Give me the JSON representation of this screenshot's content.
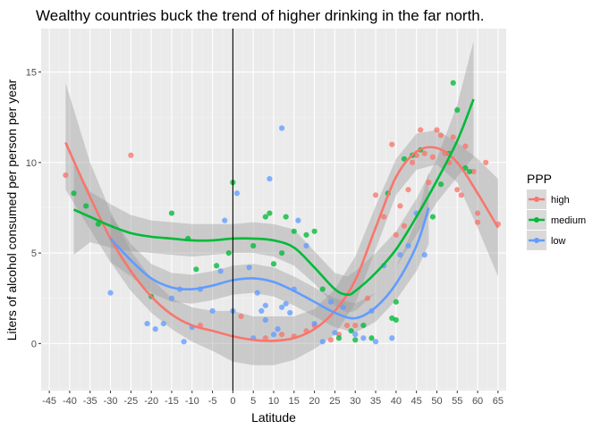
{
  "chart_data": {
    "type": "scatter",
    "title": "Wealthy countries buck the trend of higher drinking in the far north.",
    "xlabel": "Latitude",
    "ylabel": "Liters of alcohol consumed per person per year",
    "xlim": [
      -47,
      67
    ],
    "ylim": [
      -2.6,
      17.4
    ],
    "x_ticks": [
      -45,
      -40,
      -35,
      -30,
      -25,
      -20,
      -15,
      -10,
      -5,
      0,
      5,
      10,
      15,
      20,
      25,
      30,
      35,
      40,
      45,
      50,
      55,
      60,
      65
    ],
    "y_ticks": [
      0,
      5,
      10,
      15
    ],
    "vline_x": 0,
    "grid": true,
    "legend": {
      "title": "PPP",
      "position": "right"
    },
    "series": [
      {
        "name": "high",
        "color": "#F8766D",
        "points": [
          [
            -41,
            9.3
          ],
          [
            -25,
            10.4
          ],
          [
            -8,
            1.0
          ],
          [
            2,
            1.5
          ],
          [
            8,
            0.3
          ],
          [
            12,
            0.5
          ],
          [
            15,
            0.4
          ],
          [
            18,
            0.7
          ],
          [
            20,
            1.0
          ],
          [
            24,
            0.2
          ],
          [
            26,
            0.5
          ],
          [
            28,
            1.0
          ],
          [
            30,
            1.0
          ],
          [
            33,
            2.5
          ],
          [
            35,
            8.2
          ],
          [
            37,
            7.0
          ],
          [
            39,
            11.0
          ],
          [
            40,
            6.0
          ],
          [
            41,
            7.6
          ],
          [
            42,
            6.5
          ],
          [
            43,
            8.5
          ],
          [
            44,
            10.0
          ],
          [
            45,
            10.4
          ],
          [
            46,
            11.8
          ],
          [
            47,
            10.5
          ],
          [
            48,
            8.9
          ],
          [
            49,
            10.3
          ],
          [
            50,
            11.8
          ],
          [
            51,
            11.5
          ],
          [
            52,
            10.5
          ],
          [
            53,
            10.0
          ],
          [
            54,
            11.4
          ],
          [
            55,
            8.5
          ],
          [
            56,
            8.2
          ],
          [
            57,
            10.9
          ],
          [
            59,
            9.5
          ],
          [
            60,
            7.2
          ],
          [
            60,
            6.7
          ],
          [
            62,
            10.0
          ],
          [
            65,
            6.6
          ]
        ],
        "trend": [
          [
            -41,
            11.1
          ],
          [
            -35,
            8.1
          ],
          [
            -30,
            5.8
          ],
          [
            -25,
            4.0
          ],
          [
            -20,
            2.6
          ],
          [
            -15,
            1.6
          ],
          [
            -10,
            1.0
          ],
          [
            -5,
            0.7
          ],
          [
            0,
            0.4
          ],
          [
            5,
            0.2
          ],
          [
            10,
            0.15
          ],
          [
            15,
            0.3
          ],
          [
            20,
            0.8
          ],
          [
            25,
            1.8
          ],
          [
            30,
            3.5
          ],
          [
            35,
            6.4
          ],
          [
            40,
            9.2
          ],
          [
            45,
            10.6
          ],
          [
            50,
            10.8
          ],
          [
            55,
            10.0
          ],
          [
            60,
            8.3
          ],
          [
            65,
            6.4
          ]
        ],
        "band": [
          [
            -41,
            8.5,
            14.4
          ],
          [
            -35,
            6.3,
            10.0
          ],
          [
            -30,
            4.5,
            7.3
          ],
          [
            -25,
            2.9,
            5.1
          ],
          [
            -20,
            1.7,
            3.6
          ],
          [
            -15,
            0.8,
            2.5
          ],
          [
            -10,
            0.1,
            2.0
          ],
          [
            -5,
            -0.4,
            1.8
          ],
          [
            0,
            -1.0,
            1.8
          ],
          [
            5,
            -1.2,
            1.5
          ],
          [
            10,
            -1.2,
            1.5
          ],
          [
            15,
            -0.9,
            1.5
          ],
          [
            20,
            -0.3,
            1.9
          ],
          [
            25,
            0.5,
            3.0
          ],
          [
            30,
            2.2,
            4.8
          ],
          [
            35,
            5.2,
            7.6
          ],
          [
            40,
            8.2,
            10.2
          ],
          [
            45,
            9.6,
            11.6
          ],
          [
            50,
            9.9,
            11.8
          ],
          [
            55,
            8.9,
            11.1
          ],
          [
            60,
            6.4,
            10.2
          ],
          [
            65,
            3.7,
            9.1
          ]
        ]
      },
      {
        "name": "medium",
        "color": "#00BA38",
        "points": [
          [
            -39,
            8.3
          ],
          [
            -36,
            7.6
          ],
          [
            -33,
            6.6
          ],
          [
            -20,
            2.6
          ],
          [
            -15,
            7.2
          ],
          [
            -11,
            5.8
          ],
          [
            -9,
            4.1
          ],
          [
            -4,
            4.3
          ],
          [
            -1,
            5.0
          ],
          [
            0,
            8.9
          ],
          [
            5,
            5.4
          ],
          [
            8,
            7.0
          ],
          [
            9,
            7.2
          ],
          [
            10,
            4.4
          ],
          [
            12,
            5.0
          ],
          [
            13,
            7.0
          ],
          [
            15,
            6.2
          ],
          [
            18,
            6.0
          ],
          [
            20,
            6.2
          ],
          [
            22,
            3.0
          ],
          [
            26,
            0.3
          ],
          [
            29,
            0.7
          ],
          [
            30,
            0.2
          ],
          [
            32,
            1.0
          ],
          [
            34,
            0.3
          ],
          [
            38,
            8.3
          ],
          [
            39,
            1.4
          ],
          [
            40,
            1.3
          ],
          [
            40,
            2.3
          ],
          [
            42,
            10.2
          ],
          [
            44,
            10.4
          ],
          [
            46,
            10.7
          ],
          [
            49,
            7.0
          ],
          [
            51,
            8.8
          ],
          [
            53,
            10.5
          ],
          [
            54,
            14.4
          ],
          [
            55,
            12.9
          ],
          [
            57,
            9.7
          ],
          [
            58,
            9.5
          ]
        ],
        "trend": [
          [
            -39,
            7.4
          ],
          [
            -35,
            7.0
          ],
          [
            -30,
            6.5
          ],
          [
            -25,
            6.1
          ],
          [
            -20,
            5.9
          ],
          [
            -15,
            5.8
          ],
          [
            -10,
            5.7
          ],
          [
            -5,
            5.7
          ],
          [
            0,
            5.8
          ],
          [
            5,
            5.8
          ],
          [
            10,
            5.7
          ],
          [
            15,
            5.3
          ],
          [
            20,
            4.2
          ],
          [
            25,
            3.0
          ],
          [
            28,
            2.7
          ],
          [
            30,
            2.9
          ],
          [
            35,
            3.9
          ],
          [
            40,
            5.2
          ],
          [
            45,
            7.0
          ],
          [
            50,
            9.0
          ],
          [
            55,
            11.2
          ],
          [
            59,
            13.5
          ]
        ],
        "band": [
          [
            -39,
            4.9,
            9.9
          ],
          [
            -35,
            5.6,
            8.4
          ],
          [
            -30,
            5.3,
            7.7
          ],
          [
            -25,
            5.1,
            7.1
          ],
          [
            -20,
            5.0,
            6.8
          ],
          [
            -15,
            4.9,
            6.7
          ],
          [
            -10,
            4.8,
            6.6
          ],
          [
            -5,
            4.9,
            6.6
          ],
          [
            0,
            5.0,
            6.6
          ],
          [
            5,
            5.0,
            6.7
          ],
          [
            10,
            4.8,
            6.6
          ],
          [
            15,
            4.3,
            6.3
          ],
          [
            20,
            3.3,
            5.1
          ],
          [
            25,
            2.1,
            3.9
          ],
          [
            28,
            1.7,
            3.7
          ],
          [
            30,
            1.8,
            4.0
          ],
          [
            35,
            2.8,
            5.0
          ],
          [
            40,
            4.2,
            6.2
          ],
          [
            45,
            6.0,
            8.0
          ],
          [
            50,
            7.8,
            10.2
          ],
          [
            55,
            9.2,
            13.2
          ],
          [
            59,
            10.3,
            16.7
          ]
        ]
      },
      {
        "name": "low",
        "color": "#619CFF",
        "points": [
          [
            -30,
            2.8
          ],
          [
            -21,
            1.1
          ],
          [
            -19,
            0.8
          ],
          [
            -17,
            1.1
          ],
          [
            -15,
            2.5
          ],
          [
            -13,
            3.0
          ],
          [
            -12,
            0.1
          ],
          [
            -10,
            0.9
          ],
          [
            -8,
            3.0
          ],
          [
            -5,
            1.8
          ],
          [
            -3,
            4.0
          ],
          [
            -2,
            6.8
          ],
          [
            0,
            1.8
          ],
          [
            1,
            8.3
          ],
          [
            4,
            4.2
          ],
          [
            5,
            0.3
          ],
          [
            6,
            2.8
          ],
          [
            7,
            1.8
          ],
          [
            8,
            1.3
          ],
          [
            8,
            2.1
          ],
          [
            9,
            9.1
          ],
          [
            10,
            0.5
          ],
          [
            11,
            0.8
          ],
          [
            12,
            2.0
          ],
          [
            12,
            11.9
          ],
          [
            13,
            2.2
          ],
          [
            14,
            1.7
          ],
          [
            15,
            3.0
          ],
          [
            16,
            6.8
          ],
          [
            18,
            5.4
          ],
          [
            20,
            1.1
          ],
          [
            22,
            0.1
          ],
          [
            24,
            2.3
          ],
          [
            25,
            0.6
          ],
          [
            27,
            2.0
          ],
          [
            30,
            0.5
          ],
          [
            32,
            0.3
          ],
          [
            34,
            1.8
          ],
          [
            35,
            0.1
          ],
          [
            37,
            4.3
          ],
          [
            39,
            0.3
          ],
          [
            41,
            4.9
          ],
          [
            43,
            5.4
          ],
          [
            45,
            7.2
          ],
          [
            47,
            4.9
          ]
        ],
        "trend": [
          [
            -30,
            5.8
          ],
          [
            -25,
            4.6
          ],
          [
            -20,
            3.6
          ],
          [
            -15,
            3.1
          ],
          [
            -10,
            3.0
          ],
          [
            -5,
            3.2
          ],
          [
            0,
            3.5
          ],
          [
            5,
            3.6
          ],
          [
            10,
            3.4
          ],
          [
            15,
            2.9
          ],
          [
            20,
            2.3
          ],
          [
            25,
            1.7
          ],
          [
            30,
            1.4
          ],
          [
            35,
            2.0
          ],
          [
            40,
            3.3
          ],
          [
            45,
            5.4
          ],
          [
            48,
            7.5
          ]
        ],
        "band": [
          [
            -30,
            4.5,
            7.1
          ],
          [
            -25,
            3.7,
            5.5
          ],
          [
            -20,
            2.8,
            4.4
          ],
          [
            -15,
            2.3,
            3.9
          ],
          [
            -10,
            2.2,
            3.8
          ],
          [
            -5,
            2.4,
            4.0
          ],
          [
            0,
            2.7,
            4.3
          ],
          [
            5,
            2.8,
            4.4
          ],
          [
            10,
            2.6,
            4.2
          ],
          [
            15,
            2.1,
            3.7
          ],
          [
            20,
            1.5,
            3.1
          ],
          [
            25,
            0.9,
            2.5
          ],
          [
            30,
            0.6,
            2.2
          ],
          [
            35,
            1.2,
            2.8
          ],
          [
            40,
            2.4,
            4.2
          ],
          [
            45,
            4.0,
            6.8
          ],
          [
            48,
            5.5,
            9.5
          ]
        ]
      }
    ]
  }
}
